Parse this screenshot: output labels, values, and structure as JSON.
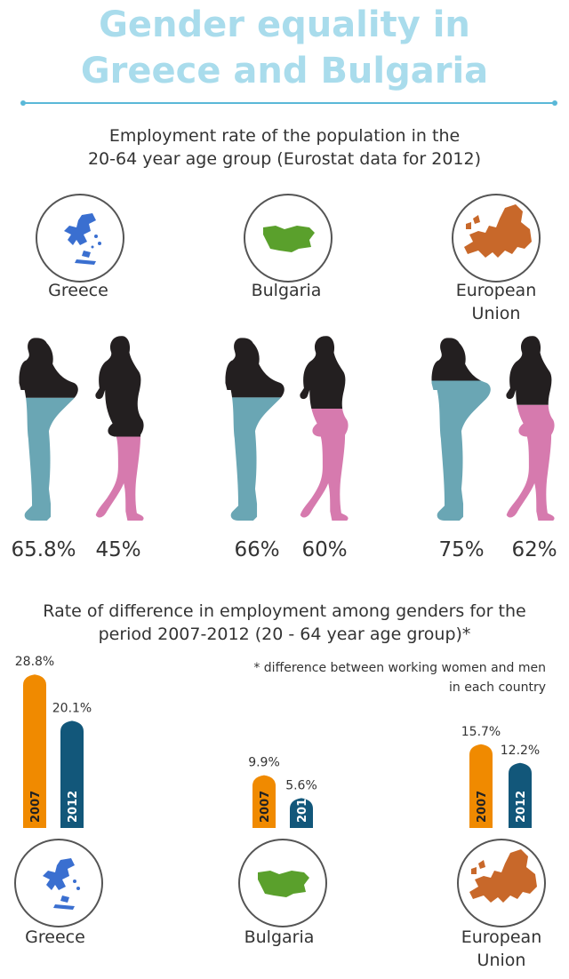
{
  "header": {
    "title_line1": "Gender equality in",
    "title_line2": "Greece and Bulgaria"
  },
  "section1": {
    "subtitle_line1": "Employment rate of the population in the",
    "subtitle_line2": "20-64 year age group (Eurostat data for 2012)"
  },
  "section2": {
    "subtitle_line1": "Rate of difference in employment among genders for the",
    "subtitle_line2": "period 2007-2012 (20 - 64 year age group)*",
    "note_line1": "* difference between working women and men",
    "note_line2": "in each country"
  },
  "countries": [
    {
      "label": "Greece",
      "label2": "",
      "men": "65.8%",
      "women": "45%",
      "d2007": "28.8%",
      "d2012": "20.1%",
      "map_color": "#3a6fd0",
      "map": "greece-map-icon"
    },
    {
      "label": "Bulgaria",
      "label2": "",
      "men": "66%",
      "women": "60%",
      "d2007": "9.9%",
      "d2012": "5.6%",
      "map_color": "#5aa02c",
      "map": "bulgaria-map-icon"
    },
    {
      "label": "European",
      "label2": "Union",
      "men": "75%",
      "women": "62%",
      "d2007": "15.7%",
      "d2012": "12.2%",
      "map_color": "#c8682a",
      "map": "europe-map-icon"
    }
  ],
  "years": {
    "y2007": "2007",
    "y2012": "2012"
  },
  "colors": {
    "title": "#a9dcec",
    "men_fill": "#6aa6b4",
    "women_fill": "#d67aae",
    "silhouette_top": "#231f20",
    "bar_2007": "#f08a00",
    "bar_2012": "#12577a"
  },
  "chart_data": [
    {
      "type": "bar",
      "title": "Employment rate of the population in the 20-64 year age group (Eurostat data for 2012)",
      "categories": [
        "Greece",
        "Bulgaria",
        "European Union"
      ],
      "series": [
        {
          "name": "",
          "values": [
            65.8,
            66,
            75
          ]
        },
        {
          "name": "",
          "values": [
            45,
            60,
            62
          ]
        }
      ],
      "ylim": [
        0,
        100
      ]
    },
    {
      "type": "bar",
      "title": "Rate of difference in employment among genders for the period 2007-2012 (20 - 64 year age group)*",
      "categories": [
        "Greece",
        "Bulgaria",
        "European Union"
      ],
      "series": [
        {
          "name": "2007",
          "values": [
            28.8,
            9.9,
            15.7
          ]
        },
        {
          "name": "2012",
          "values": [
            20.1,
            5.6,
            12.2
          ]
        }
      ]
    }
  ]
}
